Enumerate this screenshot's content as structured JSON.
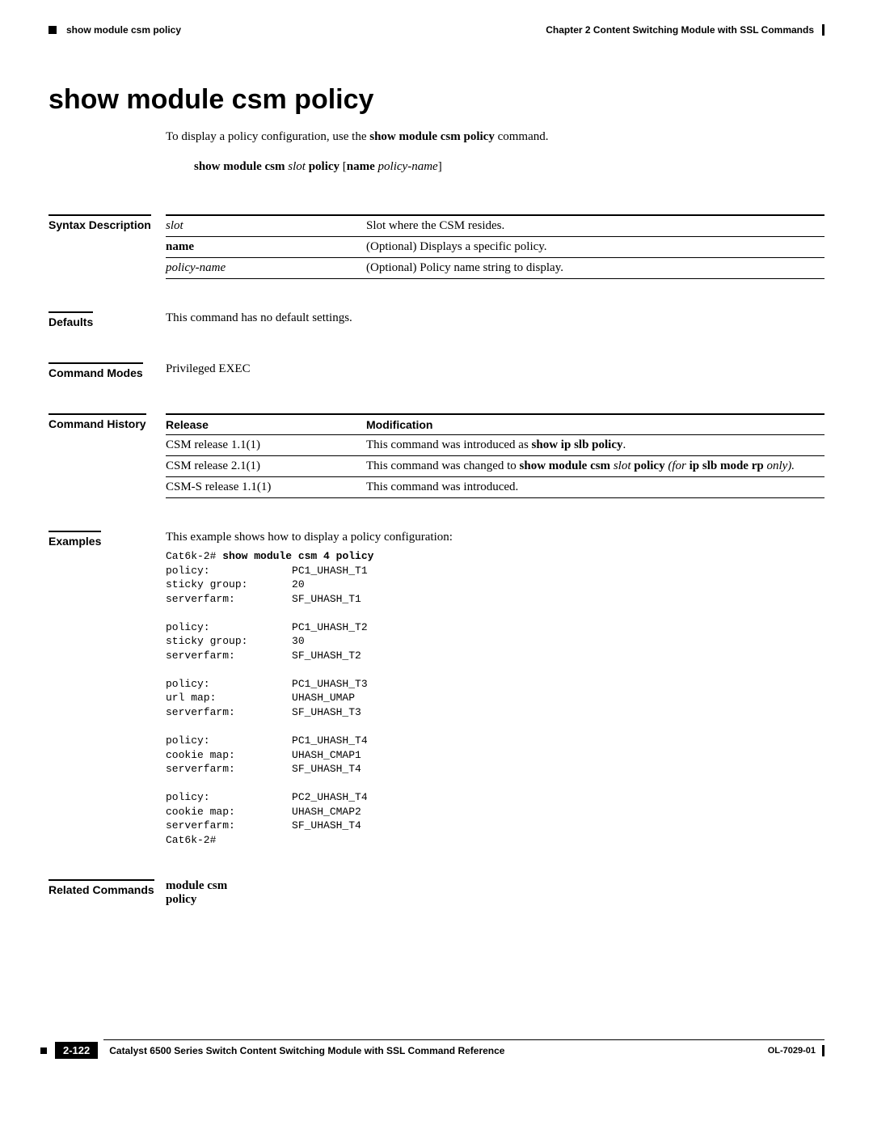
{
  "header": {
    "left": "show module csm policy",
    "right": "Chapter 2    Content Switching Module with SSL Commands"
  },
  "title": "show module csm policy",
  "intro": {
    "prefix": "To display a policy configuration, use the ",
    "cmd": "show module csm policy",
    "suffix": " command."
  },
  "syntax": {
    "p1": "show module csm ",
    "p2": "slot",
    "p3": " policy ",
    "p4": "[",
    "p5": "name ",
    "p6": "policy-name",
    "p7": "]"
  },
  "syntaxDesc": {
    "label": "Syntax Description",
    "rows": [
      {
        "arg": "slot",
        "argStyle": "italic",
        "desc": "Slot where the CSM resides."
      },
      {
        "arg": "name",
        "argStyle": "bold",
        "desc": "(Optional) Displays a specific policy."
      },
      {
        "arg": "policy-name",
        "argStyle": "italic",
        "desc": "(Optional) Policy name string to display."
      }
    ]
  },
  "defaults": {
    "label": "Defaults",
    "text": "This command has no default settings."
  },
  "modes": {
    "label": "Command Modes",
    "text": "Privileged EXEC"
  },
  "history": {
    "label": "Command History",
    "head": {
      "c1": "Release",
      "c2": "Modification"
    },
    "rows": [
      {
        "rel": "CSM release 1.1(1)",
        "mod": [
          {
            "t": "This command was introduced as "
          },
          {
            "t": "show ip slb policy",
            "style": "bold"
          },
          {
            "t": "."
          }
        ]
      },
      {
        "rel": "CSM release 2.1(1)",
        "mod": [
          {
            "t": "This command was changed to "
          },
          {
            "t": "show module csm ",
            "style": "bold"
          },
          {
            "t": "slot ",
            "style": "italic"
          },
          {
            "t": "policy ",
            "style": "bold"
          },
          {
            "t": "(for ",
            "style": "italic"
          },
          {
            "t": "ip slb mode rp ",
            "style": "bold"
          },
          {
            "t": "only).",
            "style": "italic"
          }
        ]
      },
      {
        "rel": "CSM-S release 1.1(1)",
        "mod": [
          {
            "t": "This command was introduced."
          }
        ]
      }
    ]
  },
  "examples": {
    "label": "Examples",
    "intro": "This example shows how to display a policy configuration:",
    "prompt": "Cat6k-2# ",
    "cmd": "show module csm 4 policy",
    "output": "policy:             PC1_UHASH_T1\nsticky group:       20\nserverfarm:         SF_UHASH_T1\n\npolicy:             PC1_UHASH_T2\nsticky group:       30\nserverfarm:         SF_UHASH_T2\n\npolicy:             PC1_UHASH_T3\nurl map:            UHASH_UMAP\nserverfarm:         SF_UHASH_T3\n\npolicy:             PC1_UHASH_T4\ncookie map:         UHASH_CMAP1\nserverfarm:         SF_UHASH_T4\n\npolicy:             PC2_UHASH_T4\ncookie map:         UHASH_CMAP2\nserverfarm:         SF_UHASH_T4\nCat6k-2#"
  },
  "related": {
    "label": "Related Commands",
    "items": [
      "module csm",
      "policy"
    ]
  },
  "footer": {
    "title": "Catalyst 6500 Series Switch Content Switching Module with SSL Command Reference",
    "page": "2-122",
    "doc": "OL-7029-01"
  }
}
